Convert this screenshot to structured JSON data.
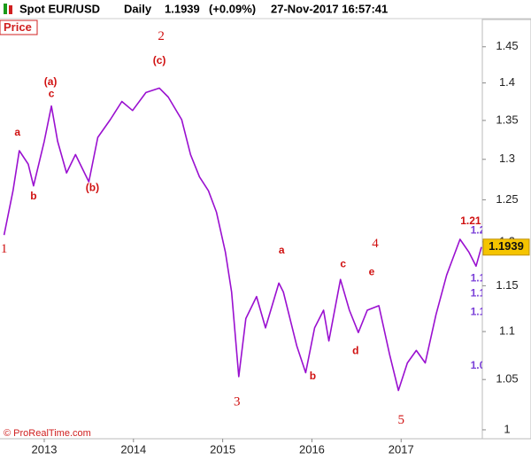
{
  "header": {
    "instrument": "Spot EUR/USD",
    "period": "Daily",
    "change": "(+0.09%)",
    "timestamp": "27-Nov-2017 16:57:41",
    "panel": "Price",
    "credit": "© ProRealTime.com"
  },
  "chart_data": {
    "type": "line",
    "log_y": true,
    "grid": false,
    "last_price": 1.1939,
    "x": [
      2012.55,
      2012.65,
      2012.72,
      2012.82,
      2012.88,
      2013.0,
      2013.08,
      2013.15,
      2013.25,
      2013.35,
      2013.5,
      2013.6,
      2013.74,
      2013.87,
      2013.99,
      2014.14,
      2014.29,
      2014.39,
      2014.54,
      2014.64,
      2014.74,
      2014.84,
      2014.93,
      2015.03,
      2015.1,
      2015.18,
      2015.26,
      2015.38,
      2015.48,
      2015.63,
      2015.68,
      2015.83,
      2015.93,
      2016.03,
      2016.13,
      2016.19,
      2016.32,
      2016.42,
      2016.52,
      2016.62,
      2016.75,
      2016.87,
      2016.97,
      2017.07,
      2017.17,
      2017.27,
      2017.39,
      2017.51,
      2017.66,
      2017.76,
      2017.84,
      2017.9
    ],
    "series": [
      {
        "color": "#9a10d0",
        "values": [
          1.208,
          1.261,
          1.311,
          1.294,
          1.267,
          1.323,
          1.369,
          1.323,
          1.283,
          1.306,
          1.272,
          1.328,
          1.351,
          1.375,
          1.363,
          1.387,
          1.393,
          1.381,
          1.351,
          1.306,
          1.278,
          1.261,
          1.235,
          1.188,
          1.143,
          1.053,
          1.114,
          1.138,
          1.104,
          1.153,
          1.143,
          1.085,
          1.057,
          1.104,
          1.123,
          1.09,
          1.157,
          1.123,
          1.099,
          1.123,
          1.128,
          1.076,
          1.039,
          1.067,
          1.08,
          1.067,
          1.118,
          1.162,
          1.203,
          1.188,
          1.172,
          1.194
        ]
      }
    ],
    "xlim": [
      2012.504,
      2017.91
    ],
    "xticks": [
      2013,
      2014,
      2015,
      2016,
      2017
    ],
    "ylim": [
      0.9914,
      1.466
    ],
    "yticks": [
      1,
      1.05,
      1.1,
      1.15,
      1.2,
      1.25,
      1.3,
      1.35,
      1.4,
      1.45
    ],
    "annotations": [
      {
        "text": "1",
        "x": 2012.55,
        "y": 1.191,
        "color": "#d01010",
        "serif": true
      },
      {
        "text": "a",
        "x": 2012.7,
        "y": 1.334,
        "color": "#d01010"
      },
      {
        "text": "b",
        "x": 2012.88,
        "y": 1.254,
        "color": "#d01010"
      },
      {
        "text": "(a)",
        "x": 2013.07,
        "y": 1.401,
        "color": "#d01010"
      },
      {
        "text": "c",
        "x": 2013.08,
        "y": 1.385,
        "color": "#d01010"
      },
      {
        "text": "(b)",
        "x": 2013.54,
        "y": 1.264,
        "color": "#d01010"
      },
      {
        "text": "2",
        "x": 2014.31,
        "y": 1.464,
        "color": "#d01010",
        "serif": true
      },
      {
        "text": "(c)",
        "x": 2014.29,
        "y": 1.43,
        "color": "#d01010"
      },
      {
        "text": "3",
        "x": 2015.16,
        "y": 1.027,
        "color": "#d01010",
        "serif": true
      },
      {
        "text": "a",
        "x": 2015.66,
        "y": 1.19,
        "color": "#d01010"
      },
      {
        "text": "b",
        "x": 2016.01,
        "y": 1.053,
        "color": "#d01010"
      },
      {
        "text": "c",
        "x": 2016.35,
        "y": 1.174,
        "color": "#d01010"
      },
      {
        "text": "4",
        "x": 2016.71,
        "y": 1.197,
        "color": "#d01010",
        "serif": true
      },
      {
        "text": "e",
        "x": 2016.67,
        "y": 1.165,
        "color": "#d01010"
      },
      {
        "text": "d",
        "x": 2016.49,
        "y": 1.079,
        "color": "#d01010"
      },
      {
        "text": "5",
        "x": 2017.0,
        "y": 1.009,
        "color": "#d01010",
        "serif": true
      },
      {
        "text": "1.21",
        "x": 2017.78,
        "y": 1.224,
        "color": "#d01010"
      },
      {
        "text": "1.2",
        "x": 2017.86,
        "y": 1.213,
        "color": "#7a3fd8"
      },
      {
        "text": "1.1",
        "x": 2017.86,
        "y": 1.158,
        "color": "#7a3fd8"
      },
      {
        "text": "1.1",
        "x": 2017.86,
        "y": 1.141,
        "color": "#7a3fd8"
      },
      {
        "text": "1.1",
        "x": 2017.86,
        "y": 1.121,
        "color": "#7a3fd8"
      },
      {
        "text": "1.0",
        "x": 2017.86,
        "y": 1.064,
        "color": "#7a3fd8"
      }
    ]
  }
}
